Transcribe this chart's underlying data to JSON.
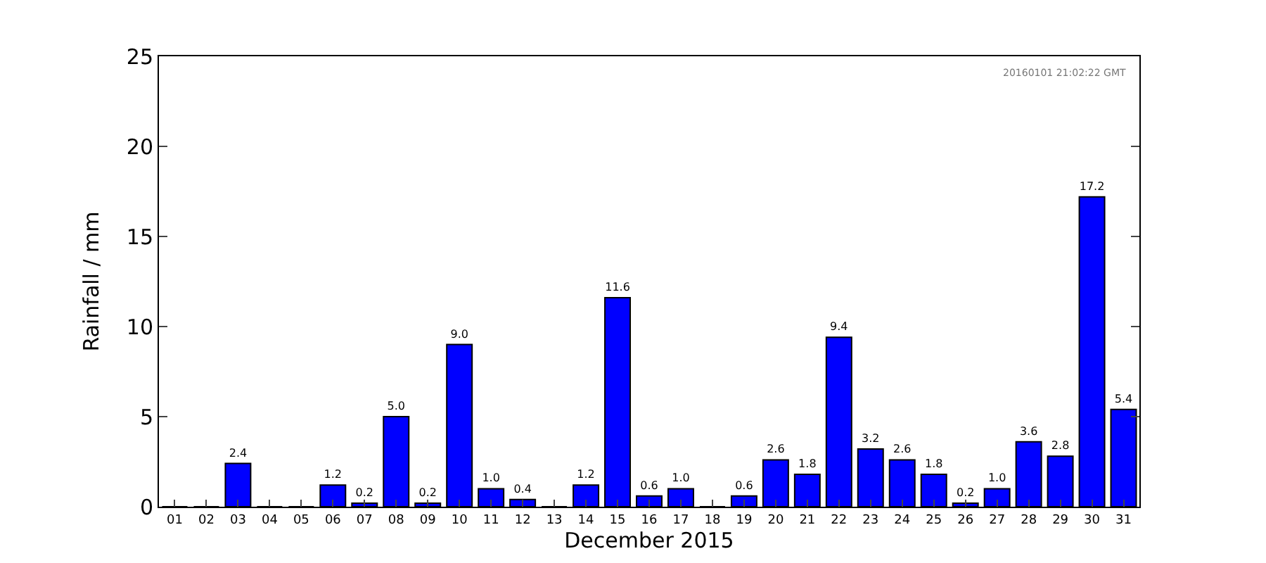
{
  "chart_data": {
    "type": "bar",
    "xlabel": "December 2015",
    "ylabel": "Rainfall / mm",
    "categories": [
      "01",
      "02",
      "03",
      "04",
      "05",
      "06",
      "07",
      "08",
      "09",
      "10",
      "11",
      "12",
      "13",
      "14",
      "15",
      "16",
      "17",
      "18",
      "19",
      "20",
      "21",
      "22",
      "23",
      "24",
      "25",
      "26",
      "27",
      "28",
      "29",
      "30",
      "31"
    ],
    "values": [
      0,
      0,
      2.4,
      0,
      0,
      1.2,
      0.2,
      5.0,
      0.2,
      9.0,
      1.0,
      0.4,
      0,
      1.2,
      11.6,
      0.6,
      1.0,
      0,
      0.6,
      2.6,
      1.8,
      9.4,
      3.2,
      2.6,
      1.8,
      0.2,
      1.0,
      3.6,
      2.8,
      17.2,
      5.4
    ],
    "value_labels": [
      null,
      null,
      "2.4",
      null,
      null,
      "1.2",
      "0.2",
      "5.0",
      "0.2",
      "9.0",
      "1.0",
      "0.4",
      null,
      "1.2",
      "11.6",
      "0.6",
      "1.0",
      null,
      "0.6",
      "2.6",
      "1.8",
      "9.4",
      "3.2",
      "2.6",
      "1.8",
      "0.2",
      "1.0",
      "3.6",
      "2.8",
      "17.2",
      "5.4"
    ],
    "color": "#0000ff",
    "ylim": [
      0,
      25
    ],
    "yticks": [
      0,
      5,
      10,
      15,
      20,
      25
    ],
    "annotations": [
      "20160101 21:02:22 GMT"
    ]
  }
}
